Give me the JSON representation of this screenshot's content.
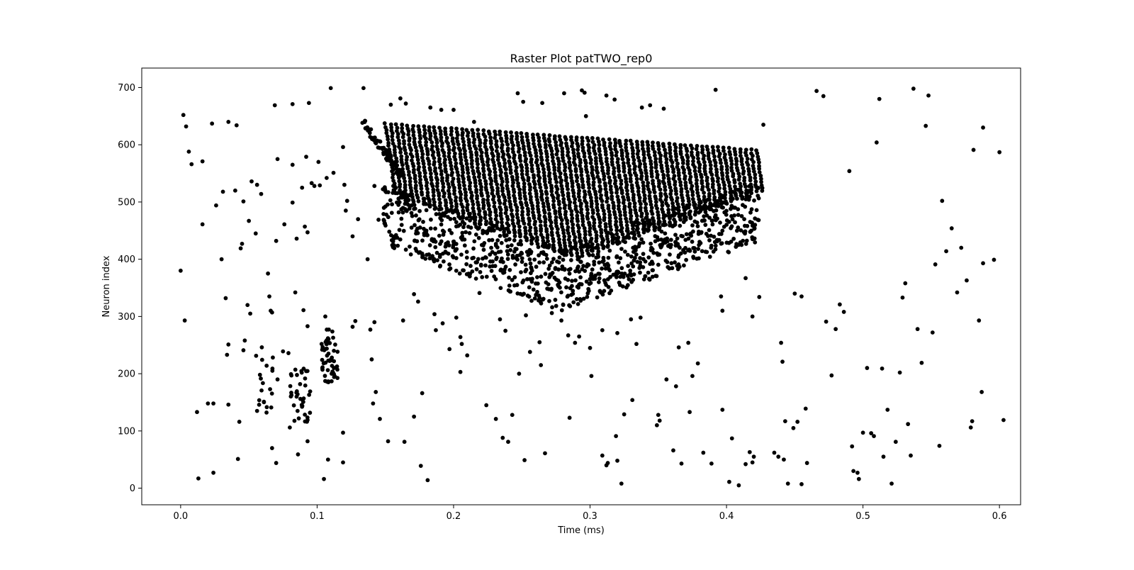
{
  "chart_data": {
    "type": "scatter",
    "title": "Raster Plot patTWO_rep0",
    "xlabel": "Time (ms)",
    "ylabel": "Neuron index",
    "xlim": [
      -0.0285,
      0.6155
    ],
    "ylim": [
      -29,
      734
    ],
    "x_ticks": [
      0.0,
      0.1,
      0.2,
      0.3,
      0.4,
      0.5,
      0.6
    ],
    "x_tick_labels": [
      "0.0",
      "0.1",
      "0.2",
      "0.3",
      "0.4",
      "0.5",
      "0.6"
    ],
    "y_ticks": [
      0,
      100,
      200,
      300,
      400,
      500,
      600,
      700
    ],
    "y_tick_labels": [
      "0",
      "100",
      "200",
      "300",
      "400",
      "500",
      "600",
      "700"
    ],
    "grid": false,
    "marker_color": "#000000",
    "burst": {
      "description_points": "dense sequential volleys",
      "t_start": 0.13,
      "t_end": 0.425,
      "volley_interval": 0.004,
      "top_start": 640,
      "top_end": 590,
      "bottom_start": 440,
      "bottom_mid": 310,
      "bottom_end": 430
    },
    "series": [
      {
        "points": [
          [
            0.002,
            652
          ],
          [
            0.004,
            632
          ],
          [
            0.006,
            588
          ],
          [
            0.008,
            566
          ],
          [
            0.016,
            571
          ],
          [
            0.0,
            380
          ],
          [
            0.003,
            293
          ],
          [
            0.012,
            133
          ],
          [
            0.013,
            17
          ],
          [
            0.024,
            27
          ],
          [
            0.023,
            637
          ],
          [
            0.026,
            494
          ],
          [
            0.016,
            461
          ],
          [
            0.02,
            148
          ],
          [
            0.024,
            148
          ],
          [
            0.03,
            400
          ],
          [
            0.031,
            518
          ],
          [
            0.033,
            332
          ],
          [
            0.035,
            640
          ],
          [
            0.035,
            146
          ],
          [
            0.04,
            520
          ],
          [
            0.041,
            634
          ],
          [
            0.042,
            51
          ],
          [
            0.043,
            116
          ],
          [
            0.044,
            419
          ],
          [
            0.045,
            427
          ],
          [
            0.046,
            501
          ],
          [
            0.047,
            258
          ],
          [
            0.049,
            320
          ],
          [
            0.05,
            467
          ],
          [
            0.052,
            536
          ],
          [
            0.055,
            445
          ],
          [
            0.056,
            530
          ],
          [
            0.059,
            514
          ],
          [
            0.064,
            375
          ],
          [
            0.065,
            335
          ],
          [
            0.067,
            307
          ],
          [
            0.069,
            669
          ],
          [
            0.071,
            575
          ],
          [
            0.07,
            432
          ],
          [
            0.067,
            70
          ],
          [
            0.07,
            44
          ],
          [
            0.076,
            461
          ],
          [
            0.082,
            671
          ],
          [
            0.082,
            565
          ],
          [
            0.082,
            499
          ],
          [
            0.085,
            436
          ],
          [
            0.089,
            525
          ],
          [
            0.091,
            457
          ],
          [
            0.093,
            447
          ],
          [
            0.094,
            673
          ],
          [
            0.092,
            579
          ],
          [
            0.096,
            533
          ],
          [
            0.098,
            528
          ],
          [
            0.101,
            570
          ],
          [
            0.102,
            529
          ],
          [
            0.107,
            542
          ],
          [
            0.11,
            699
          ],
          [
            0.112,
            551
          ],
          [
            0.119,
            596
          ],
          [
            0.12,
            530
          ],
          [
            0.122,
            502
          ],
          [
            0.121,
            485
          ],
          [
            0.126,
            440
          ],
          [
            0.13,
            470
          ],
          [
            0.128,
            292
          ],
          [
            0.126,
            282
          ],
          [
            0.134,
            699
          ],
          [
            0.137,
            400
          ],
          [
            0.139,
            277
          ],
          [
            0.142,
            290
          ],
          [
            0.142,
            528
          ],
          [
            0.14,
            225
          ],
          [
            0.141,
            148
          ],
          [
            0.143,
            168
          ],
          [
            0.146,
            121
          ],
          [
            0.152,
            82
          ],
          [
            0.164,
            81
          ],
          [
            0.163,
            293
          ],
          [
            0.171,
            125
          ],
          [
            0.176,
            39
          ],
          [
            0.177,
            166
          ],
          [
            0.181,
            14
          ],
          [
            0.086,
            59
          ],
          [
            0.093,
            82
          ],
          [
            0.105,
            16
          ],
          [
            0.108,
            50
          ],
          [
            0.119,
            45
          ],
          [
            0.119,
            97
          ],
          [
            0.084,
            342
          ],
          [
            0.093,
            283
          ],
          [
            0.09,
            311
          ],
          [
            0.106,
            300
          ],
          [
            0.034,
            233
          ],
          [
            0.035,
            251
          ],
          [
            0.051,
            305
          ],
          [
            0.066,
            310
          ],
          [
            0.046,
            241
          ],
          [
            0.063,
            214
          ],
          [
            0.061,
            151
          ],
          [
            0.056,
            135
          ],
          [
            0.075,
            239
          ],
          [
            0.079,
            236
          ],
          [
            0.071,
            190
          ],
          [
            0.08,
            106
          ],
          [
            0.197,
            243
          ],
          [
            0.202,
            298
          ],
          [
            0.21,
            232
          ],
          [
            0.205,
            203
          ],
          [
            0.224,
            145
          ],
          [
            0.231,
            121
          ],
          [
            0.236,
            88
          ],
          [
            0.24,
            81
          ],
          [
            0.243,
            128
          ],
          [
            0.248,
            200
          ],
          [
            0.252,
            49
          ],
          [
            0.256,
            238
          ],
          [
            0.263,
            255
          ],
          [
            0.264,
            215
          ],
          [
            0.267,
            61
          ],
          [
            0.272,
            306
          ],
          [
            0.285,
            123
          ],
          [
            0.289,
            254
          ],
          [
            0.292,
            265
          ],
          [
            0.294,
            695
          ],
          [
            0.296,
            691
          ],
          [
            0.247,
            690
          ],
          [
            0.251,
            675
          ],
          [
            0.265,
            673
          ],
          [
            0.281,
            690
          ],
          [
            0.297,
            650
          ],
          [
            0.3,
            245
          ],
          [
            0.301,
            196
          ],
          [
            0.309,
            57
          ],
          [
            0.312,
            40
          ],
          [
            0.313,
            44
          ],
          [
            0.319,
            91
          ],
          [
            0.32,
            48
          ],
          [
            0.323,
            8
          ],
          [
            0.325,
            129
          ],
          [
            0.331,
            154
          ],
          [
            0.334,
            252
          ],
          [
            0.337,
            298
          ],
          [
            0.338,
            665
          ],
          [
            0.344,
            669
          ],
          [
            0.35,
            128
          ],
          [
            0.354,
            663
          ],
          [
            0.349,
            110
          ],
          [
            0.351,
            118
          ],
          [
            0.356,
            190
          ],
          [
            0.361,
            66
          ],
          [
            0.363,
            178
          ],
          [
            0.365,
            246
          ],
          [
            0.367,
            43
          ],
          [
            0.372,
            254
          ],
          [
            0.373,
            133
          ],
          [
            0.375,
            196
          ],
          [
            0.379,
            218
          ],
          [
            0.383,
            62
          ],
          [
            0.389,
            43
          ],
          [
            0.392,
            696
          ],
          [
            0.397,
            137
          ],
          [
            0.402,
            11
          ],
          [
            0.404,
            87
          ],
          [
            0.409,
            5
          ],
          [
            0.414,
            42
          ],
          [
            0.417,
            63
          ],
          [
            0.419,
            45
          ],
          [
            0.42,
            55
          ],
          [
            0.424,
            334
          ],
          [
            0.427,
            635
          ],
          [
            0.44,
            254
          ],
          [
            0.441,
            221
          ],
          [
            0.443,
            117
          ],
          [
            0.449,
            105
          ],
          [
            0.452,
            116
          ],
          [
            0.455,
            7
          ],
          [
            0.458,
            139
          ],
          [
            0.459,
            44
          ],
          [
            0.466,
            694
          ],
          [
            0.471,
            685
          ],
          [
            0.473,
            291
          ],
          [
            0.477,
            197
          ],
          [
            0.48,
            278
          ],
          [
            0.483,
            321
          ],
          [
            0.486,
            308
          ],
          [
            0.49,
            554
          ],
          [
            0.492,
            73
          ],
          [
            0.493,
            30
          ],
          [
            0.496,
            27
          ],
          [
            0.497,
            16
          ],
          [
            0.5,
            97
          ],
          [
            0.503,
            210
          ],
          [
            0.506,
            96
          ],
          [
            0.508,
            91
          ],
          [
            0.51,
            604
          ],
          [
            0.512,
            680
          ],
          [
            0.514,
            209
          ],
          [
            0.515,
            55
          ],
          [
            0.518,
            137
          ],
          [
            0.521,
            8
          ],
          [
            0.524,
            81
          ],
          [
            0.527,
            202
          ],
          [
            0.529,
            333
          ],
          [
            0.531,
            358
          ],
          [
            0.533,
            112
          ],
          [
            0.535,
            57
          ],
          [
            0.537,
            698
          ],
          [
            0.54,
            278
          ],
          [
            0.543,
            219
          ],
          [
            0.546,
            633
          ],
          [
            0.548,
            686
          ],
          [
            0.551,
            272
          ],
          [
            0.553,
            391
          ],
          [
            0.556,
            74
          ],
          [
            0.558,
            502
          ],
          [
            0.561,
            414
          ],
          [
            0.565,
            454
          ],
          [
            0.569,
            342
          ],
          [
            0.572,
            420
          ],
          [
            0.576,
            363
          ],
          [
            0.579,
            106
          ],
          [
            0.58,
            117
          ],
          [
            0.581,
            591
          ],
          [
            0.585,
            293
          ],
          [
            0.587,
            168
          ],
          [
            0.588,
            630
          ],
          [
            0.588,
            393
          ],
          [
            0.596,
            399
          ],
          [
            0.6,
            587
          ],
          [
            0.603,
            119
          ],
          [
            0.435,
            62
          ],
          [
            0.438,
            55
          ],
          [
            0.442,
            50
          ],
          [
            0.445,
            8
          ],
          [
            0.414,
            367
          ],
          [
            0.419,
            300
          ],
          [
            0.397,
            310
          ],
          [
            0.396,
            335
          ],
          [
            0.186,
            304
          ],
          [
            0.187,
            276
          ],
          [
            0.192,
            288
          ],
          [
            0.205,
            264
          ],
          [
            0.206,
            252
          ],
          [
            0.219,
            341
          ],
          [
            0.234,
            295
          ],
          [
            0.238,
            275
          ],
          [
            0.253,
            302
          ],
          [
            0.279,
            293
          ],
          [
            0.284,
            267
          ],
          [
            0.309,
            276
          ],
          [
            0.32,
            271
          ],
          [
            0.33,
            295
          ],
          [
            0.171,
            339
          ],
          [
            0.174,
            326
          ],
          [
            0.145,
            469
          ],
          [
            0.15,
            519
          ],
          [
            0.154,
            670
          ],
          [
            0.161,
            681
          ],
          [
            0.165,
            672
          ],
          [
            0.183,
            665
          ],
          [
            0.191,
            661
          ],
          [
            0.2,
            661
          ],
          [
            0.215,
            640
          ],
          [
            0.312,
            686
          ],
          [
            0.318,
            679
          ],
          [
            0.45,
            340
          ],
          [
            0.455,
            335
          ]
        ]
      }
    ]
  }
}
